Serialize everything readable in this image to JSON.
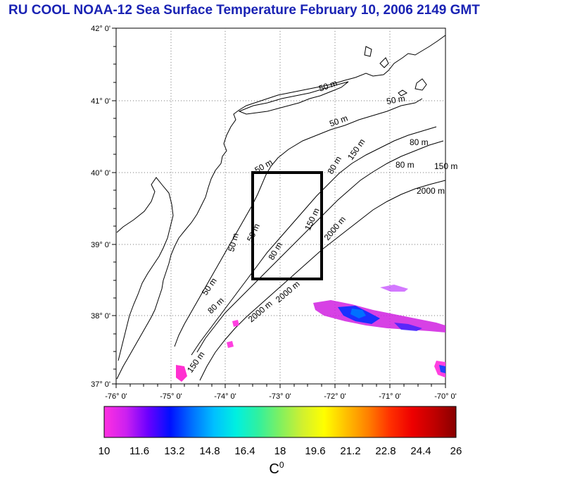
{
  "title": "RU COOL  NOAA-12 Sea Surface Temperature February 10, 2006 2149 GMT",
  "axes": {
    "lat_labels": [
      "42° 0'",
      "41° 0'",
      "40° 0'",
      "39° 0'",
      "38° 0'",
      "37° 0'"
    ],
    "lon_labels": [
      "-76° 0'",
      "-75° 0'",
      "-74° 0'",
      "-73° 0'",
      "-72° 0'",
      "-71° 0'",
      "-70° 0'"
    ]
  },
  "contours": {
    "labels": [
      "50 m",
      "50 m",
      "80 m",
      "80 m",
      "150 m",
      "150 m",
      "2000 m",
      "2000 m",
      "50 m",
      "50 m",
      "80 m",
      "80 m",
      "2000 m",
      "50 m",
      "80 m",
      "150 m",
      "50 m",
      "2000 m",
      "50 m",
      "150 m"
    ]
  },
  "colorbar": {
    "ticks": [
      "10",
      "11.6",
      "13.2",
      "14.8",
      "16.4",
      "18",
      "19.6",
      "21.2",
      "22.8",
      "24.4",
      "26"
    ],
    "units": "C",
    "units_sup": "0",
    "gradient": [
      "#ff30e0",
      "#cc20f0",
      "#6a00ff",
      "#0010ff",
      "#0070ff",
      "#00c0ff",
      "#00f0e0",
      "#30f0a0",
      "#80f060",
      "#d0f030",
      "#ffff00",
      "#ffc000",
      "#ff8000",
      "#ff3000",
      "#ee0000",
      "#c00000",
      "#880000"
    ]
  },
  "colors": {
    "title": "#1a23b4",
    "study_box": "#000000",
    "land": "#ffffff"
  }
}
